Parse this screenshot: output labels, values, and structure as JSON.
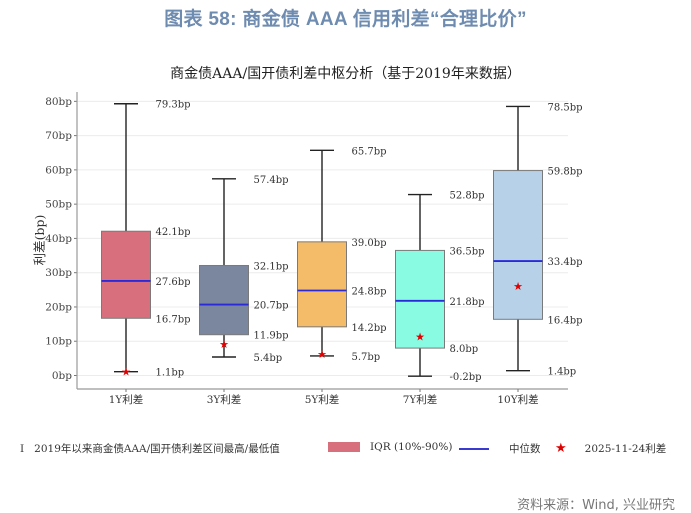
{
  "header": {
    "figure_title": "图表 58: 商金债 AAA 信用利差“合理比价”"
  },
  "chart_data": {
    "type": "box",
    "title": "商金债AAA/国开债利差中枢分析（基于2019年来数据）",
    "xlabel": "",
    "ylabel": "利差(bp)",
    "ylim": [
      -2,
      82
    ],
    "yticks": [
      "0bp",
      "10bp",
      "20bp",
      "30bp",
      "40bp",
      "50bp",
      "60bp",
      "70bp",
      "80bp"
    ],
    "grid": true,
    "categories": [
      "1Y利差",
      "3Y利差",
      "5Y利差",
      "7Y利差",
      "10Y利差"
    ],
    "series": [
      {
        "name": "1Y利差",
        "min": 1.1,
        "q10": 16.7,
        "median": 27.6,
        "q90": 42.1,
        "max": 79.3,
        "current": 1.1,
        "color": "#d7707c",
        "labels": {
          "max": "79.3bp",
          "q90": "42.1bp",
          "median": "27.6bp",
          "q10": "16.7bp",
          "min": "1.1bp"
        }
      },
      {
        "name": "3Y利差",
        "min": 5.4,
        "q10": 11.9,
        "median": 20.7,
        "q90": 32.1,
        "max": 57.4,
        "current": 9.2,
        "color": "#7a879e",
        "labels": {
          "max": "57.4bp",
          "q90": "32.1bp",
          "median": "20.7bp",
          "q10": "11.9bp",
          "min": "5.4bp"
        }
      },
      {
        "name": "5Y利差",
        "min": 5.7,
        "q10": 14.2,
        "median": 24.8,
        "q90": 39.0,
        "max": 65.7,
        "current": 6.3,
        "color": "#f4bc68",
        "labels": {
          "max": "65.7bp",
          "q90": "39.0bp",
          "median": "24.8bp",
          "q10": "14.2bp",
          "min": "5.7bp"
        }
      },
      {
        "name": "7Y利差",
        "min": -0.2,
        "q10": 8.0,
        "median": 21.8,
        "q90": 36.5,
        "max": 52.8,
        "current": 11.4,
        "color": "#88fbe2",
        "labels": {
          "max": "52.8bp",
          "q90": "36.5bp",
          "median": "21.8bp",
          "q10": "8.0bp",
          "min": "-0.2bp"
        }
      },
      {
        "name": "10Y利差",
        "min": 1.4,
        "q10": 16.4,
        "median": 33.4,
        "q90": 59.8,
        "max": 78.5,
        "current": 26.1,
        "color": "#b6d1e8",
        "labels": {
          "max": "78.5bp",
          "q90": "59.8bp",
          "median": "33.4bp",
          "q10": "16.4bp",
          "min": "1.4bp"
        }
      }
    ],
    "legend": [
      {
        "symbol": "whisker",
        "label": "2019年以来商金债AAA/国开债利差区间最高/最低值"
      },
      {
        "symbol": "box",
        "label": "IQR (10%-90%)",
        "color": "#d7707c"
      },
      {
        "symbol": "line",
        "label": "中位数",
        "color": "#3a3ad0"
      },
      {
        "symbol": "star",
        "label": "2025-11-24利差",
        "color": "#e00000"
      }
    ],
    "legend_position": "bottom"
  },
  "legend": {
    "whisker_glyph": "I",
    "whisker_label": "2019年以来商金债AAA/国开债利差区间最高/最低值",
    "box_label": "IQR (10%-90%)",
    "median_label": "中位数",
    "star_glyph": "★",
    "star_label": "2025-11-24利差"
  },
  "footer": {
    "source": "资料来源：Wind, 兴业研究"
  },
  "colors": {
    "title": "#6e8bb0",
    "median_line": "#2a2ad8",
    "star": "#e00000",
    "grid": "#ebebeb"
  }
}
